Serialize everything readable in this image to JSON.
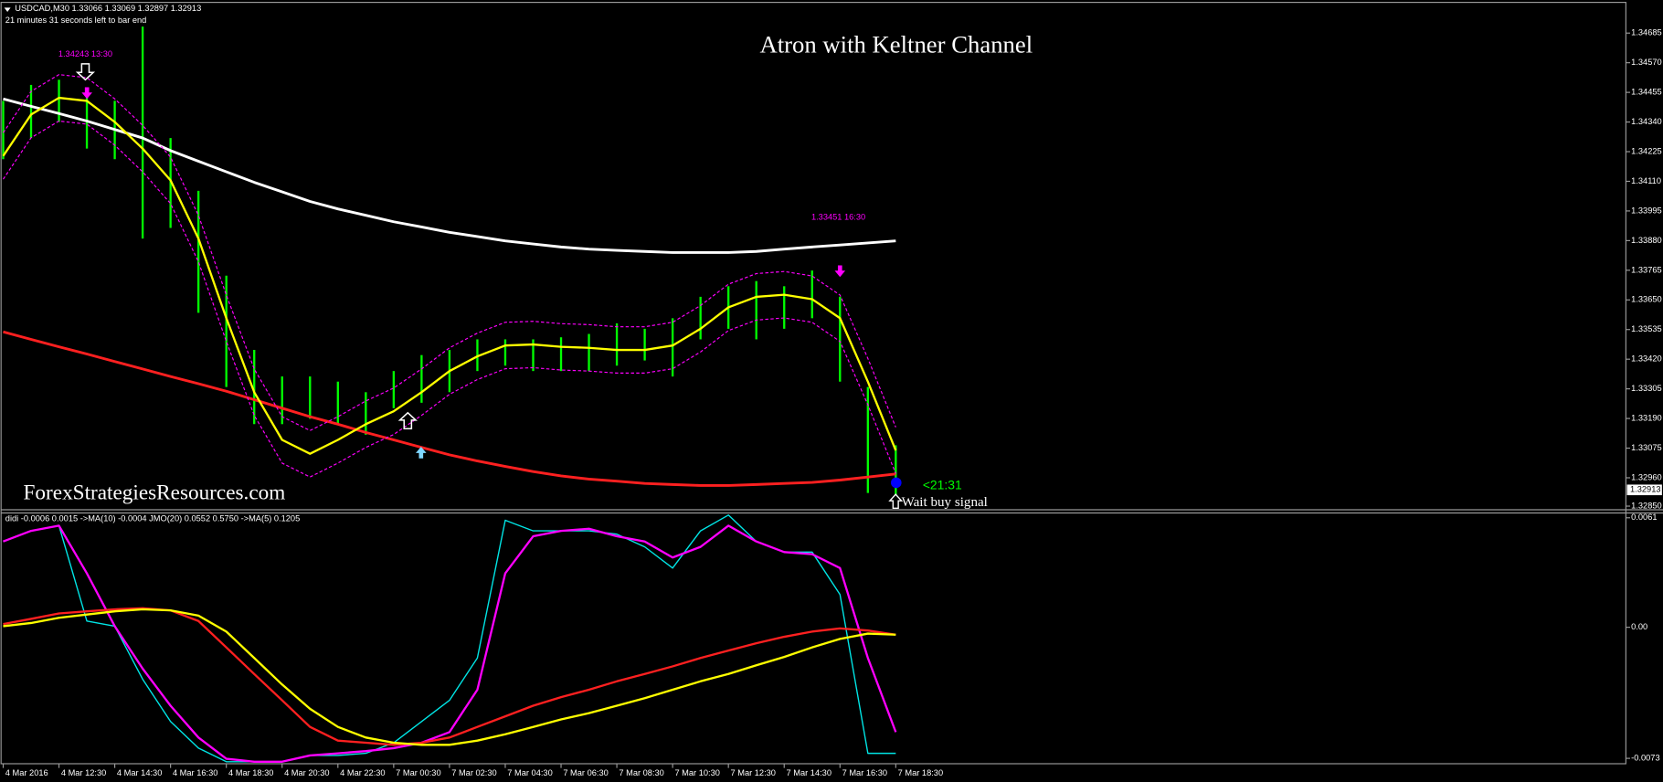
{
  "chart_data": [
    {
      "type": "ohlc",
      "header": "USDCAD,M30  1.33066 1.33069 1.32897 1.32913",
      "timer": "21 minutes 31 seconds left to bar end",
      "title": "Atron with Keltner Channel",
      "watermark": "ForexStrategiesResources.com",
      "annotations": [
        "1.34243 13:30",
        "1.33451 16:30",
        "<21:31",
        "Wait buy signal"
      ],
      "categories": [
        "4 Mar 2016",
        null,
        "4 Mar 12:30",
        null,
        "4 Mar 14:30",
        null,
        "4 Mar 16:30",
        null,
        "4 Mar 18:30",
        null,
        "4 Mar 20:30",
        null,
        "4 Mar 22:30",
        null,
        "7 Mar 00:30",
        null,
        "7 Mar 02:30",
        null,
        "7 Mar 04:30",
        null,
        "7 Mar 06:30",
        null,
        "7 Mar 08:30",
        null,
        "7 Mar 10:30",
        null,
        "7 Mar 12:30",
        null,
        "7 Mar 14:30",
        null,
        "7 Mar 16:30",
        null,
        "7 Mar 18:30"
      ],
      "ylim": [
        1.32838,
        1.348
      ],
      "yticks": [
        1.34685,
        {
          "value": 1.3457,
          "label": "1.34570"
        },
        1.34455,
        {
          "value": 1.3434,
          "label": "1.34340"
        },
        1.34225,
        {
          "value": 1.3411,
          "label": "1.34110"
        },
        1.33995,
        {
          "value": 1.3388,
          "label": "1.33880"
        },
        1.33765,
        {
          "value": 1.3365,
          "label": "1.33650"
        },
        1.33535,
        {
          "value": 1.3342,
          "label": "1.33420"
        },
        1.33305,
        {
          "value": 1.3319,
          "label": "1.33190"
        },
        1.33075,
        {
          "value": 1.3296,
          "label": "1.32960"
        },
        {
          "value": 1.3285,
          "label": "1.32850"
        }
      ],
      "last_price": 1.32913,
      "bars": {
        "color": "#00ff00",
        "high": [
          1.34422,
          1.34484,
          1.34504,
          1.34463,
          1.34422,
          1.3471,
          1.34278,
          1.34073,
          1.33744,
          1.33456,
          1.33353,
          1.33353,
          1.33333,
          1.33292,
          1.33374,
          1.33436,
          1.33456,
          1.33497,
          1.33497,
          1.33497,
          1.33505,
          1.33518,
          1.33559,
          1.33538,
          1.33579,
          1.33662,
          1.33703,
          1.33723,
          1.33703,
          1.33764,
          1.33662,
          1.33312,
          1.33086
        ],
        "low": [
          1.34196,
          1.34278,
          1.3434,
          1.34237,
          1.34196,
          1.33888,
          1.33929,
          1.336,
          1.33312,
          1.33168,
          1.33168,
          1.33189,
          1.33168,
          1.33127,
          1.3323,
          1.33251,
          1.33292,
          1.33374,
          1.33395,
          1.33374,
          1.33374,
          1.33374,
          1.33395,
          1.33415,
          1.33353,
          1.33497,
          1.33538,
          1.33497,
          1.33538,
          1.33579,
          1.33333,
          1.32901,
          1.32893
        ]
      },
      "series": [
        {
          "color": "#ffffff",
          "width": 2.5,
          "values": [
            1.3443,
            1.34401,
            1.34373,
            1.34344,
            1.34311,
            1.34278,
            1.34229,
            1.34188,
            1.34147,
            1.34106,
            1.34069,
            1.34032,
            1.34003,
            1.33978,
            1.33953,
            1.33933,
            1.33912,
            1.33896,
            1.33879,
            1.33867,
            1.33855,
            1.33847,
            1.33842,
            1.33838,
            1.33834,
            1.33834,
            1.33834,
            1.33838,
            1.33847,
            1.33855,
            1.33863,
            1.33871,
            1.33879
          ]
        },
        {
          "color": "#ff2020",
          "width": 2.5,
          "values": [
            1.33526,
            1.33497,
            1.33468,
            1.3344,
            1.33411,
            1.33382,
            1.33353,
            1.33325,
            1.33296,
            1.33263,
            1.3323,
            1.33197,
            1.33168,
            1.33136,
            1.33107,
            1.33078,
            1.33049,
            1.33025,
            1.33004,
            1.32984,
            1.32967,
            1.32955,
            1.32947,
            1.32938,
            1.32934,
            1.3293,
            1.3293,
            1.32934,
            1.32938,
            1.32942,
            1.32951,
            1.32963,
            1.32975
          ]
        },
        {
          "color": "#ff00ff",
          "width": 1,
          "dash": true,
          "values": [
            1.34298,
            1.34459,
            1.34524,
            1.34512,
            1.3443,
            1.34327,
            1.34204,
            1.33978,
            1.33669,
            1.33382,
            1.33197,
            1.33143,
            1.33197,
            1.33258,
            1.33308,
            1.33382,
            1.33464,
            1.33521,
            1.33563,
            1.33567,
            1.33558,
            1.33554,
            1.33546,
            1.33546,
            1.33563,
            1.33628,
            1.33711,
            1.33752,
            1.3376,
            1.33743,
            1.33669,
            1.33423,
            1.33156
          ]
        },
        {
          "color": "#ff00ff",
          "width": 1,
          "dash": true,
          "values": [
            1.34118,
            1.34279,
            1.34344,
            1.34332,
            1.3425,
            1.34147,
            1.34024,
            1.33798,
            1.33489,
            1.33202,
            1.33017,
            1.32963,
            1.33017,
            1.33078,
            1.33128,
            1.33202,
            1.33284,
            1.33341,
            1.33383,
            1.33387,
            1.33378,
            1.33374,
            1.33366,
            1.33366,
            1.33383,
            1.33448,
            1.33531,
            1.33572,
            1.3358,
            1.33563,
            1.33489,
            1.33243,
            1.32976
          ]
        },
        {
          "color": "#ffff00",
          "width": 2,
          "values": [
            1.34208,
            1.34369,
            1.34434,
            1.34422,
            1.3434,
            1.34237,
            1.34114,
            1.33888,
            1.33579,
            1.33292,
            1.33107,
            1.33053,
            1.33107,
            1.33168,
            1.33218,
            1.33292,
            1.33374,
            1.33431,
            1.33473,
            1.33477,
            1.33468,
            1.33464,
            1.33456,
            1.33456,
            1.33473,
            1.33538,
            1.33621,
            1.33662,
            1.3367,
            1.33653,
            1.33579,
            1.33333,
            1.33066
          ]
        }
      ]
    },
    {
      "type": "line",
      "header": "didi -0.0006 0.0015  ->MA(10) -0.0004  JMO(20) 0.0552 0.5750  ->MA(5) 0.1205",
      "ylim": [
        -0.0076,
        0.00634
      ],
      "yticks": [
        0.0061,
        {
          "value": 0,
          "label": "0.00"
        },
        -0.0073
      ],
      "series": [
        {
          "color": "#00e5e5",
          "width": 1.2,
          "values": [
            0.00478,
            0.00537,
            0.00566,
            0.00035,
            6e-05,
            -0.00289,
            -0.00525,
            -0.00673,
            -0.00749,
            -0.00749,
            -0.00749,
            -0.00714,
            -0.00714,
            -0.00702,
            -0.00643,
            -0.00525,
            -0.00407,
            -0.00171,
            0.00596,
            0.00537,
            0.00537,
            0.00537,
            0.00519,
            0.00448,
            0.0033,
            0.00537,
            0.00625,
            0.00478,
            0.00419,
            0.00419,
            0.00183,
            -0.00702,
            -0.00702
          ]
        },
        {
          "color": "#ff00ff",
          "width": 2,
          "values": [
            0.00478,
            0.00537,
            0.00566,
            0.00301,
            6e-05,
            -0.0023,
            -0.00437,
            -0.00614,
            -0.00732,
            -0.00749,
            -0.00749,
            -0.00714,
            -0.00702,
            -0.0069,
            -0.00673,
            -0.00643,
            -0.00584,
            -0.00348,
            0.00301,
            0.00507,
            0.00537,
            0.00549,
            0.00507,
            0.00478,
            0.00389,
            0.00448,
            0.00566,
            0.00478,
            0.00419,
            0.00407,
            0.0033,
            -0.00171,
            -0.00584
          ]
        },
        {
          "color": "#ff2020",
          "width": 2,
          "values": [
            0.00018,
            0.00047,
            0.00077,
            0.00089,
            0.001,
            0.00106,
            0.00094,
            0.00035,
            -0.00112,
            -0.0026,
            -0.00407,
            -0.00555,
            -0.00631,
            -0.00643,
            -0.00655,
            -0.00643,
            -0.00614,
            -0.00555,
            -0.00496,
            -0.00437,
            -0.00389,
            -0.00348,
            -0.00301,
            -0.0026,
            -0.00218,
            -0.00171,
            -0.0013,
            -0.00089,
            -0.00053,
            -0.00024,
            -6e-05,
            -0.00018,
            -0.00041
          ]
        },
        {
          "color": "#ffff00",
          "width": 2,
          "values": [
            6e-05,
            0.00024,
            0.00053,
            0.00071,
            0.00089,
            0.001,
            0.00094,
            0.00065,
            -0.00024,
            -0.00171,
            -0.00319,
            -0.00454,
            -0.00555,
            -0.00614,
            -0.00643,
            -0.00655,
            -0.00655,
            -0.00631,
            -0.00596,
            -0.00555,
            -0.00513,
            -0.00478,
            -0.00437,
            -0.00395,
            -0.00348,
            -0.00301,
            -0.0026,
            -0.00212,
            -0.00165,
            -0.00112,
            -0.00065,
            -0.00035,
            -0.00041
          ]
        }
      ]
    }
  ]
}
